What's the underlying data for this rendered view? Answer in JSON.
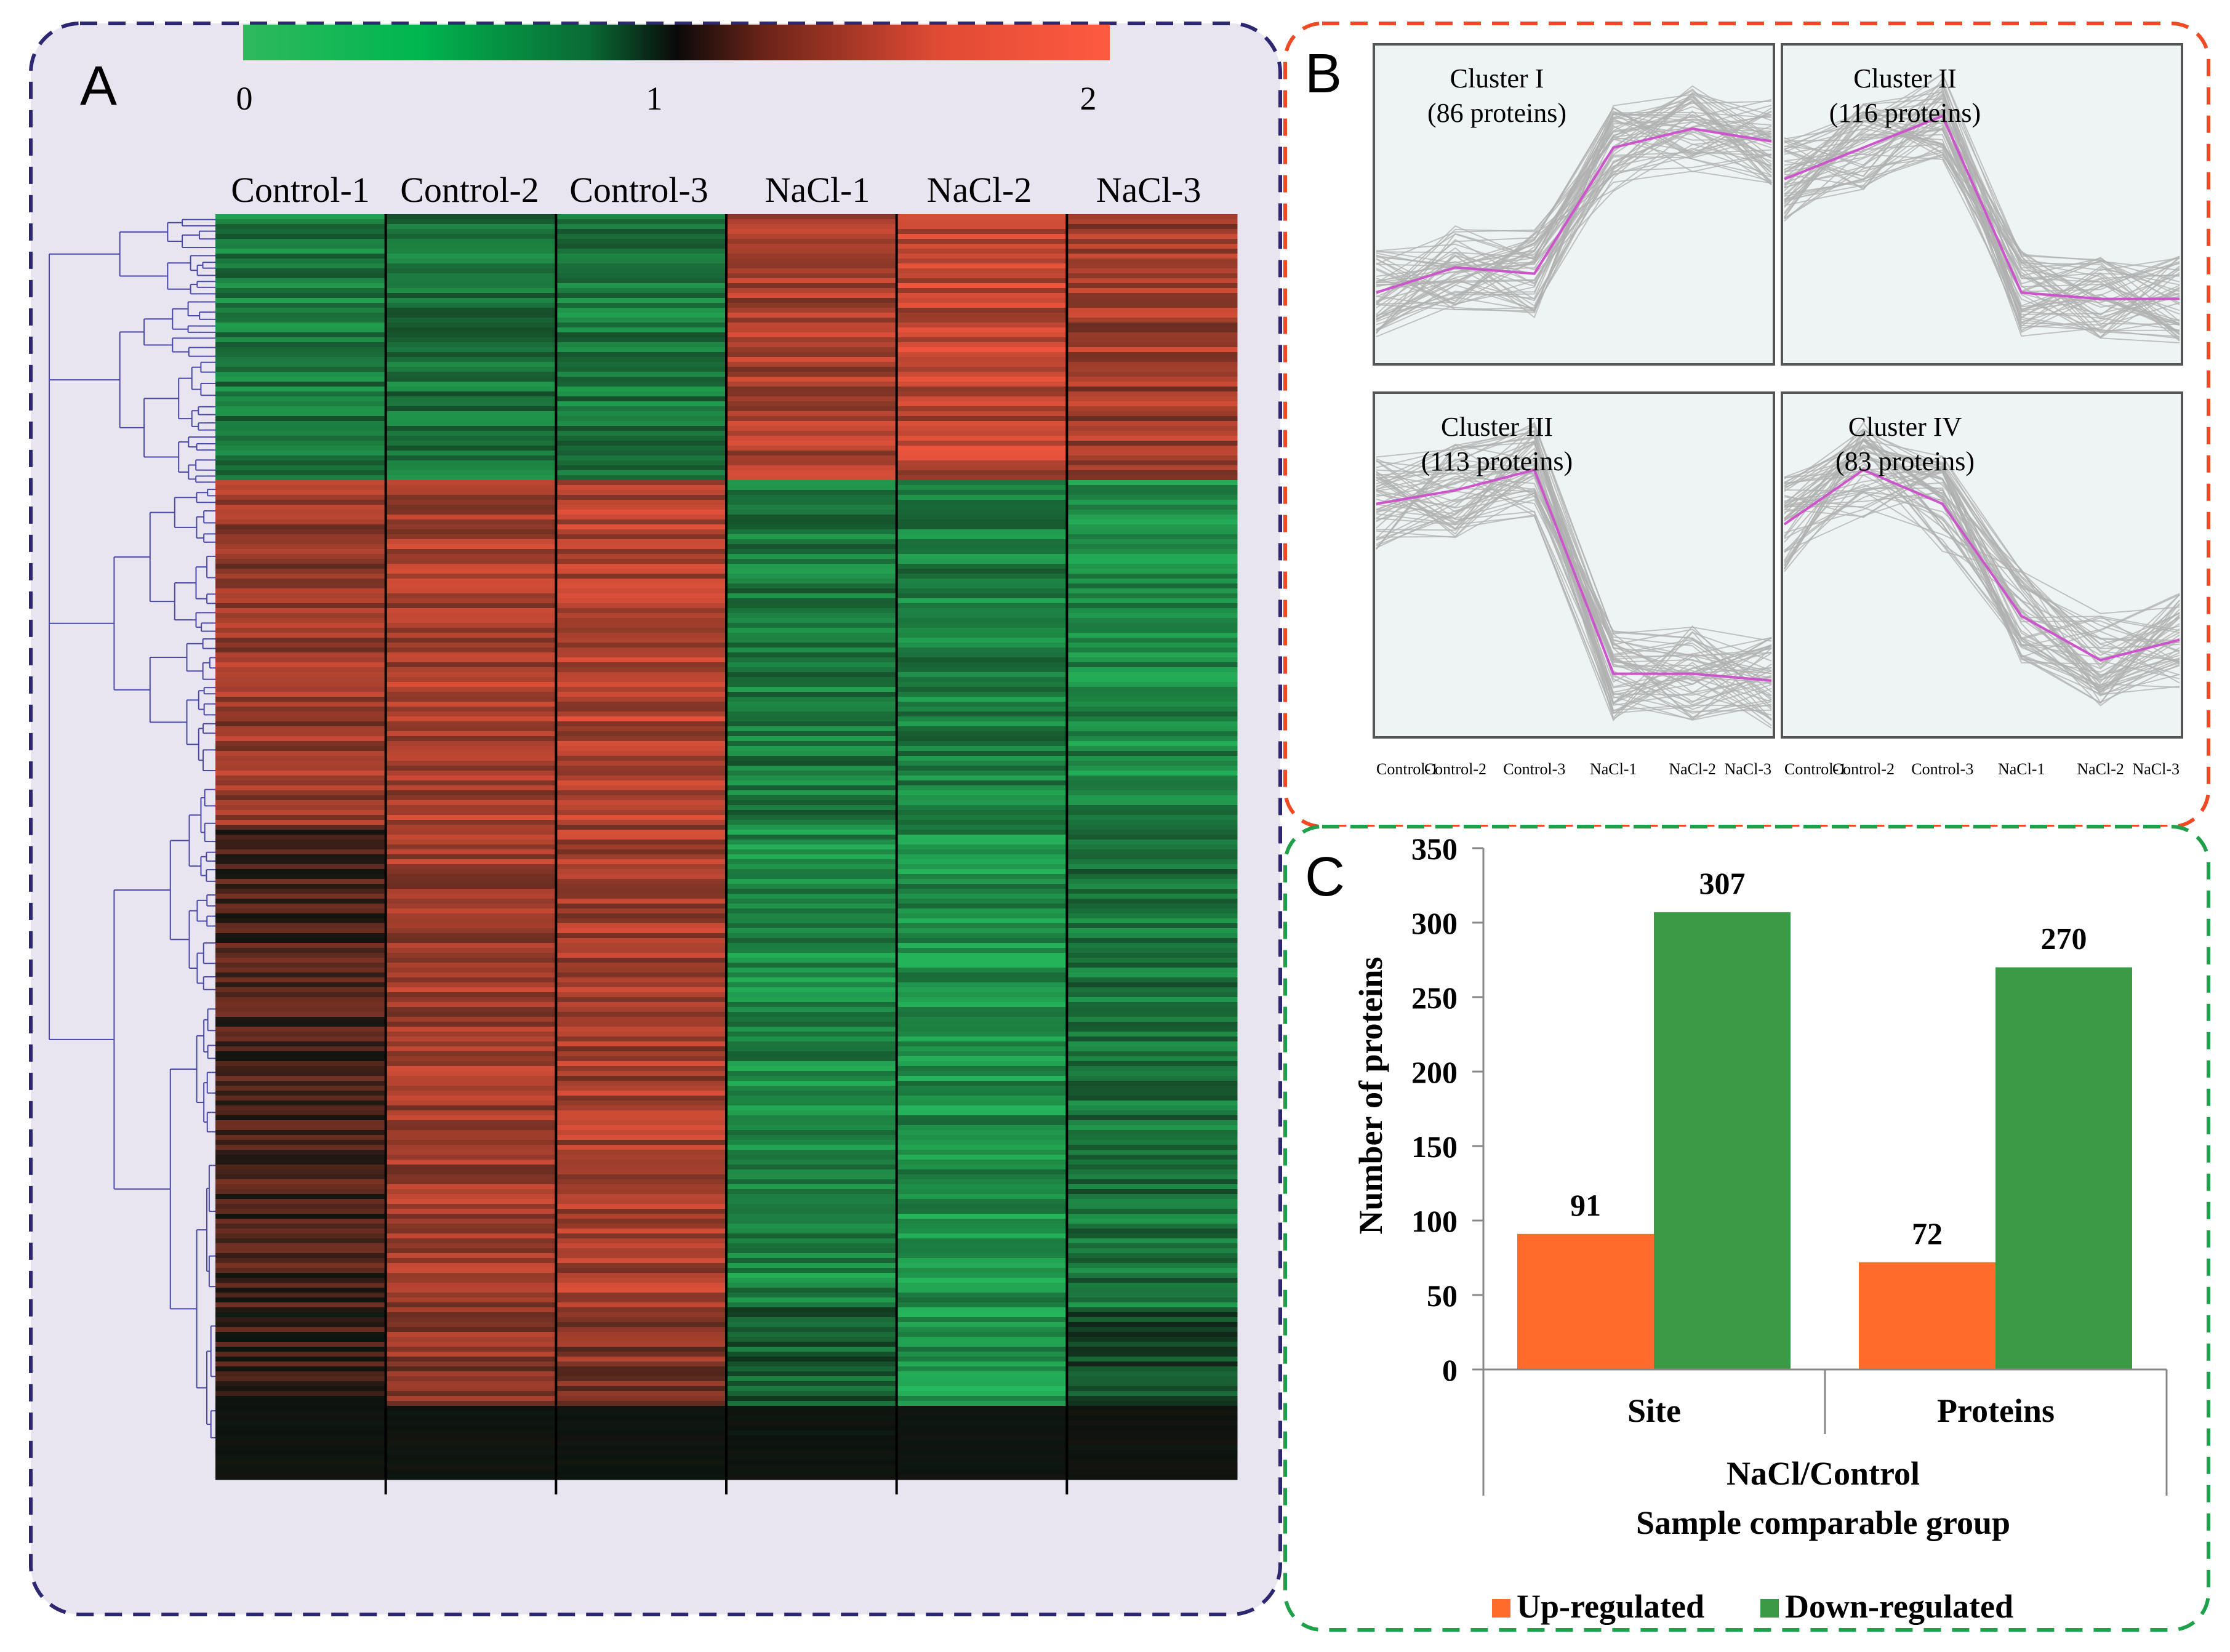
{
  "colors": {
    "up": "#ff6b2b",
    "down": "#3a9a45",
    "panel_a_bg": "#e8e4f0",
    "panel_a_border": "#2d2670",
    "panel_b_border": "#f04a25",
    "panel_c_border": "#1fa04a",
    "heat_low": "#2ec872",
    "heat_mid": "#111111",
    "heat_high": "#ff5a40",
    "profile_line": "#b0b0b0",
    "centroid_line": "#cc55cc"
  },
  "panel_a": {
    "letter": "A",
    "colorbar_ticks": [
      "0",
      "1",
      "2"
    ],
    "columns": [
      "Control-1",
      "Control-2",
      "Control-3",
      "NaCl-1",
      "NaCl-2",
      "NaCl-3"
    ]
  },
  "panel_b": {
    "letter": "B",
    "x_labels": [
      "Control-1",
      "Control-2",
      "Control-3",
      "NaCl-1",
      "NaCl-2",
      "NaCl-3"
    ],
    "clusters": [
      {
        "name": "Cluster I",
        "count": "(86 proteins)",
        "centroid": [
          0.22,
          0.3,
          0.28,
          0.68,
          0.74,
          0.7
        ]
      },
      {
        "name": "Cluster II",
        "count": "(116 proteins)",
        "centroid": [
          0.58,
          0.68,
          0.78,
          0.22,
          0.2,
          0.2
        ]
      },
      {
        "name": "Cluster III",
        "count": "(113 proteins)",
        "centroid": [
          0.68,
          0.72,
          0.78,
          0.18,
          0.18,
          0.16
        ]
      },
      {
        "name": "Cluster IV",
        "count": "(83 proteins)",
        "centroid": [
          0.62,
          0.78,
          0.68,
          0.35,
          0.22,
          0.28
        ]
      }
    ]
  },
  "panel_c": {
    "letter": "C",
    "chart_data": {
      "type": "bar",
      "categories": [
        "Site",
        "Proteins"
      ],
      "series": [
        {
          "name": "Up-regulated",
          "values": [
            91,
            72
          ]
        },
        {
          "name": "Down-regulated",
          "values": [
            307,
            270
          ]
        }
      ],
      "ylabel": "Number of proteins",
      "xlabel_line1": "NaCl/Control",
      "xlabel_line2": "Sample comparable group",
      "ylim": [
        0,
        350
      ],
      "yticks": [
        "0",
        "50",
        "100",
        "150",
        "200",
        "250",
        "300",
        "350"
      ],
      "grid": false,
      "legend_position": "bottom"
    }
  }
}
